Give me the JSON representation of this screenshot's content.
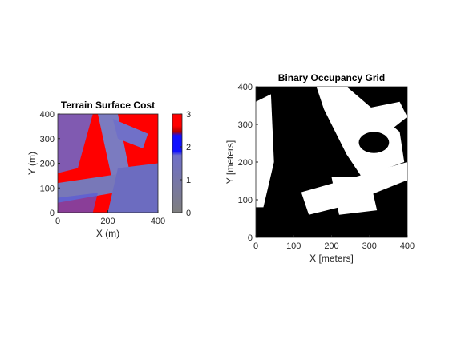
{
  "chart_data": [
    {
      "type": "image",
      "title": "Terrain Surface Cost",
      "xlabel": "X (m)",
      "ylabel": "Y (m)",
      "xlim": [
        0,
        400
      ],
      "ylim": [
        0,
        400
      ],
      "xticks": [
        0,
        200,
        400
      ],
      "yticks": [
        0,
        100,
        200,
        300,
        400
      ],
      "colorbar": {
        "clim": [
          0,
          3
        ],
        "ticks": [
          0,
          1,
          2,
          3
        ],
        "colors": [
          "#7f7f7f",
          "#6f6fc8",
          "#1010ff",
          "#b00000",
          "#ff0000"
        ]
      }
    },
    {
      "type": "image",
      "title": "Binary Occupancy Grid",
      "xlabel": "X [meters]",
      "ylabel": "Y [meters]",
      "xlim": [
        0,
        400
      ],
      "ylim": [
        0,
        400
      ],
      "xticks": [
        0,
        100,
        200,
        300,
        400
      ],
      "yticks": [
        0,
        100,
        200,
        300,
        400
      ]
    }
  ]
}
